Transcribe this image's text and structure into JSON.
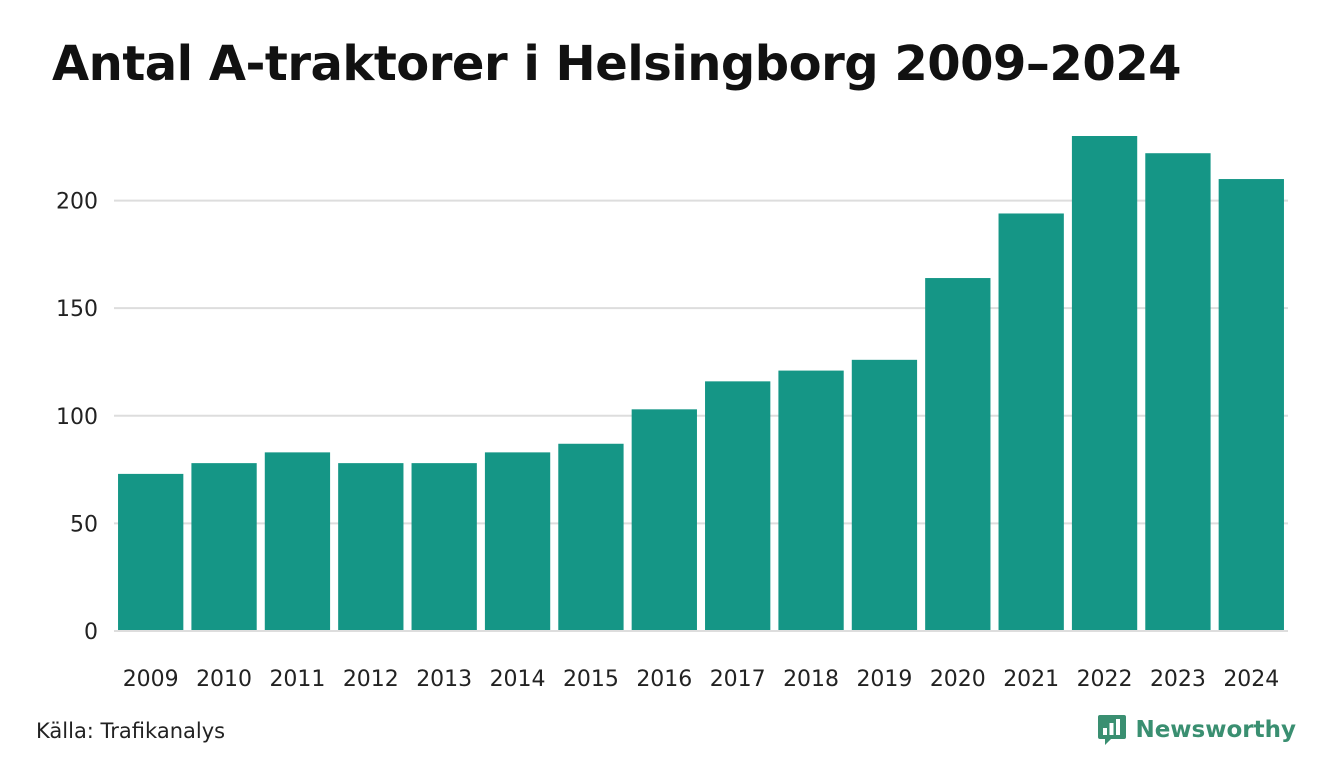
{
  "colors": {
    "bar": "#159686",
    "grid": "#dddddd",
    "brand": "#3a8f71",
    "text": "#111111"
  },
  "chart_data": {
    "type": "bar",
    "title": "Antal A-traktorer i Helsingborg 2009–2024",
    "xlabel": "",
    "ylabel": "",
    "categories": [
      "2009",
      "2010",
      "2011",
      "2012",
      "2013",
      "2014",
      "2015",
      "2016",
      "2017",
      "2018",
      "2019",
      "2020",
      "2021",
      "2022",
      "2023",
      "2024"
    ],
    "values": [
      73,
      78,
      83,
      78,
      78,
      83,
      87,
      103,
      116,
      121,
      126,
      164,
      194,
      230,
      222,
      210
    ],
    "ylim": [
      0,
      230
    ],
    "yticks": [
      "0",
      "50",
      "100",
      "150",
      "200"
    ],
    "grid": true,
    "legend": "none"
  },
  "footer": {
    "source": "Källa: Trafikanalys",
    "brand": "Newsworthy",
    "brand_icon": "newsworthy-logo-icon"
  }
}
